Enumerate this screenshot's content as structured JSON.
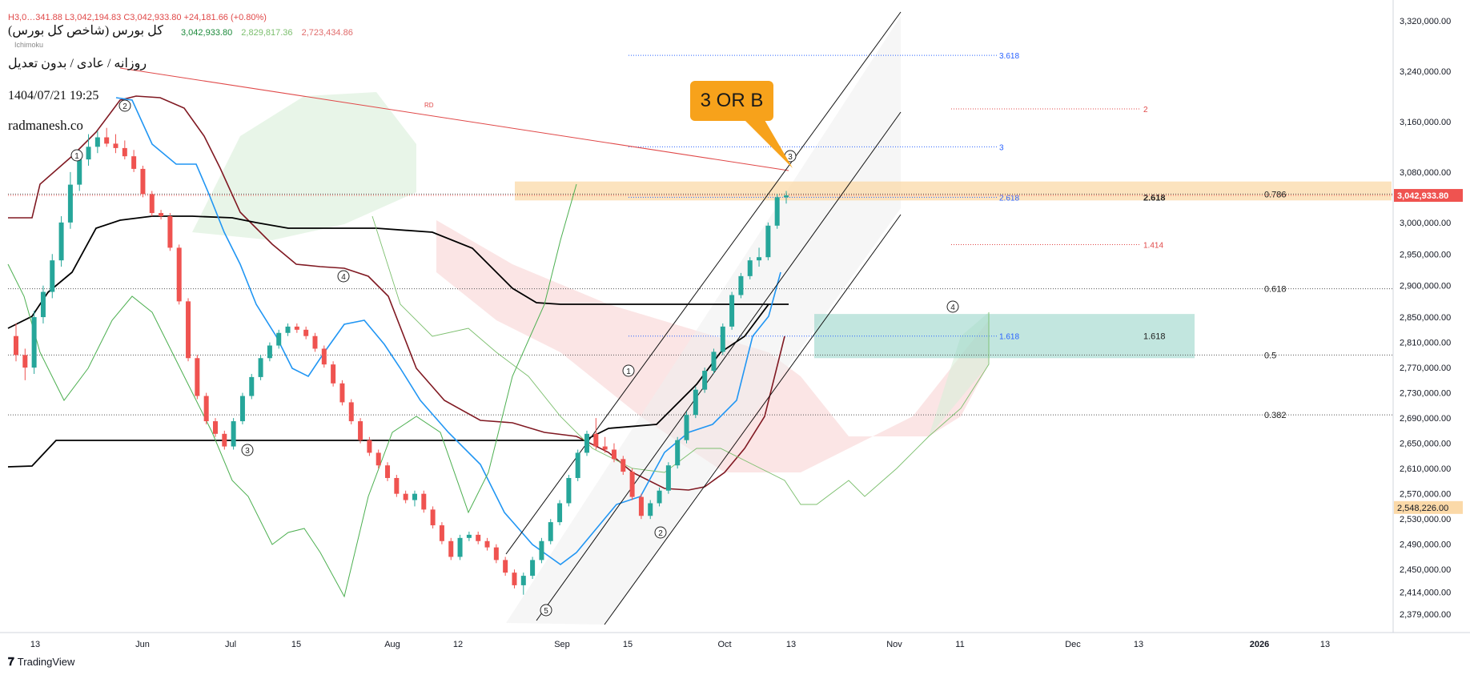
{
  "header": {
    "title": "کل بورس (شاخص کل بورس)",
    "subtitle": "روزانه / عادی / بدون تعدیل",
    "datetime": "1404/07/21 19:25",
    "site": "radmanesh.co",
    "ohlc": "H3,0…341.88  L3,042,194.83  C3,042,933.80  +24,181.66 (+0.80%)",
    "indicator_values": [
      "3,042,933.80",
      "2,829,817.36",
      "2,723,434.86"
    ],
    "indicator_name": "Ichimoku"
  },
  "callout": {
    "text": "3 OR B"
  },
  "footer": {
    "brand": "TradingView"
  },
  "colors": {
    "up": "#26a69a",
    "down": "#ef5350",
    "tenkan": "#2196f3",
    "kijun": "#801922",
    "chikou_base": "#000000",
    "senkou_a": "#4caf50",
    "kumo_red": "#f7cfcf",
    "kumo_green": "#d8eed8",
    "zone_orange": "#fbd9a8",
    "zone_teal": "#8fd1c4"
  },
  "chart_data": {
    "type": "candlestick",
    "title": "کل بورس (شاخص کل بورس)",
    "ylim": [
      2350000,
      3340000
    ],
    "y_ticks": [
      "3,320,000.00",
      "3,240,000.00",
      "3,160,000.00",
      "3,080,000.00",
      "3,000,000.00",
      "2,950,000.00",
      "2,900,000.00",
      "2,850,000.00",
      "2,810,000.00",
      "2,770,000.00",
      "2,730,000.00",
      "2,690,000.00",
      "2,650,000.00",
      "2,610,000.00",
      "2,570,000.00",
      "2,530,000.00",
      "2,490,000.00",
      "2,450,000.00",
      "2,414,000.00",
      "2,379,000.00"
    ],
    "x_ticks": [
      "13",
      "Jun",
      "Jul",
      "15",
      "Aug",
      "12",
      "Sep",
      "15",
      "Oct",
      "13",
      "Nov",
      "11",
      "Dec",
      "13",
      "2026",
      "13"
    ],
    "price_label": {
      "value": "3,042,933.80",
      "color": "#ef5350"
    },
    "secondary_label": {
      "value": "2,548,226.00",
      "color": "#fbd9a8"
    },
    "candles": [
      [
        2820000,
        2840000,
        2780000,
        2790000
      ],
      [
        2790000,
        2800000,
        2750000,
        2770000
      ],
      [
        2770000,
        2860000,
        2760000,
        2850000
      ],
      [
        2850000,
        2900000,
        2840000,
        2890000
      ],
      [
        2890000,
        2950000,
        2880000,
        2940000
      ],
      [
        2940000,
        3010000,
        2930000,
        3000000
      ],
      [
        3000000,
        3080000,
        2990000,
        3060000
      ],
      [
        3060000,
        3110000,
        3050000,
        3100000
      ],
      [
        3100000,
        3140000,
        3090000,
        3120000
      ],
      [
        3120000,
        3145000,
        3110000,
        3135000
      ],
      [
        3135000,
        3150000,
        3120000,
        3125000
      ],
      [
        3125000,
        3140000,
        3110000,
        3118000
      ],
      [
        3118000,
        3130000,
        3100000,
        3105000
      ],
      [
        3105000,
        3115000,
        3080000,
        3085000
      ],
      [
        3085000,
        3090000,
        3040000,
        3045000
      ],
      [
        3045000,
        3050000,
        3010000,
        3015000
      ],
      [
        3015000,
        3020000,
        3005000,
        3010000
      ],
      [
        3010000,
        3015000,
        2955000,
        2960000
      ],
      [
        2960000,
        2965000,
        2870000,
        2875000
      ],
      [
        2875000,
        2880000,
        2780000,
        2785000
      ],
      [
        2785000,
        2790000,
        2720000,
        2725000
      ],
      [
        2725000,
        2730000,
        2680000,
        2685000
      ],
      [
        2685000,
        2690000,
        2660000,
        2665000
      ],
      [
        2665000,
        2670000,
        2640000,
        2645000
      ],
      [
        2645000,
        2690000,
        2640000,
        2685000
      ],
      [
        2685000,
        2730000,
        2680000,
        2725000
      ],
      [
        2725000,
        2760000,
        2720000,
        2755000
      ],
      [
        2755000,
        2790000,
        2750000,
        2785000
      ],
      [
        2785000,
        2810000,
        2780000,
        2805000
      ],
      [
        2805000,
        2830000,
        2800000,
        2825000
      ],
      [
        2825000,
        2840000,
        2820000,
        2835000
      ],
      [
        2835000,
        2840000,
        2825000,
        2830000
      ],
      [
        2830000,
        2835000,
        2815000,
        2820000
      ],
      [
        2820000,
        2825000,
        2795000,
        2800000
      ],
      [
        2800000,
        2805000,
        2770000,
        2775000
      ],
      [
        2775000,
        2780000,
        2740000,
        2745000
      ],
      [
        2745000,
        2750000,
        2710000,
        2715000
      ],
      [
        2715000,
        2720000,
        2680000,
        2685000
      ],
      [
        2685000,
        2690000,
        2650000,
        2655000
      ],
      [
        2655000,
        2660000,
        2630000,
        2635000
      ],
      [
        2635000,
        2640000,
        2610000,
        2615000
      ],
      [
        2615000,
        2620000,
        2590000,
        2595000
      ],
      [
        2595000,
        2600000,
        2565000,
        2570000
      ],
      [
        2570000,
        2575000,
        2555000,
        2560000
      ],
      [
        2560000,
        2575000,
        2550000,
        2570000
      ],
      [
        2570000,
        2575000,
        2540000,
        2545000
      ],
      [
        2545000,
        2550000,
        2515000,
        2520000
      ],
      [
        2520000,
        2525000,
        2490000,
        2495000
      ],
      [
        2495000,
        2500000,
        2465000,
        2470000
      ],
      [
        2470000,
        2505000,
        2465000,
        2500000
      ],
      [
        2500000,
        2510000,
        2495000,
        2505000
      ],
      [
        2505000,
        2510000,
        2490000,
        2495000
      ],
      [
        2495000,
        2500000,
        2480000,
        2485000
      ],
      [
        2485000,
        2490000,
        2460000,
        2465000
      ],
      [
        2465000,
        2470000,
        2440000,
        2445000
      ],
      [
        2445000,
        2450000,
        2420000,
        2425000
      ],
      [
        2425000,
        2445000,
        2410000,
        2440000
      ],
      [
        2440000,
        2470000,
        2435000,
        2465000
      ],
      [
        2465000,
        2500000,
        2460000,
        2495000
      ],
      [
        2495000,
        2530000,
        2490000,
        2525000
      ],
      [
        2525000,
        2560000,
        2520000,
        2555000
      ],
      [
        2555000,
        2600000,
        2550000,
        2595000
      ],
      [
        2595000,
        2640000,
        2590000,
        2635000
      ],
      [
        2635000,
        2670000,
        2630000,
        2665000
      ],
      [
        2665000,
        2690000,
        2640000,
        2645000
      ],
      [
        2645000,
        2660000,
        2635000,
        2640000
      ],
      [
        2640000,
        2650000,
        2620000,
        2625000
      ],
      [
        2625000,
        2630000,
        2600000,
        2605000
      ],
      [
        2605000,
        2610000,
        2560000,
        2565000
      ],
      [
        2565000,
        2570000,
        2530000,
        2535000
      ],
      [
        2535000,
        2560000,
        2530000,
        2555000
      ],
      [
        2555000,
        2580000,
        2550000,
        2575000
      ],
      [
        2575000,
        2620000,
        2570000,
        2615000
      ],
      [
        2615000,
        2660000,
        2610000,
        2655000
      ],
      [
        2655000,
        2700000,
        2650000,
        2695000
      ],
      [
        2695000,
        2740000,
        2690000,
        2735000
      ],
      [
        2735000,
        2770000,
        2730000,
        2765000
      ],
      [
        2765000,
        2800000,
        2760000,
        2795000
      ],
      [
        2795000,
        2840000,
        2790000,
        2835000
      ],
      [
        2835000,
        2890000,
        2830000,
        2885000
      ],
      [
        2885000,
        2920000,
        2880000,
        2915000
      ],
      [
        2915000,
        2945000,
        2910000,
        2940000
      ],
      [
        2940000,
        2960000,
        2930000,
        2945000
      ],
      [
        2945000,
        3000000,
        2940000,
        2995000
      ],
      [
        2995000,
        3045000,
        2990000,
        3040000
      ],
      [
        3040000,
        3050000,
        3030000,
        3042933
      ]
    ],
    "fib_levels": [
      {
        "label": "0.786",
        "value": 3045000
      },
      {
        "label": "0.618",
        "value": 2895000
      },
      {
        "label": "0.5",
        "value": 2790000
      },
      {
        "label": "0.382",
        "value": 2695000
      }
    ],
    "ext_levels": [
      {
        "label": "3.618",
        "value": 3265000,
        "color": "#2962ff"
      },
      {
        "label": "2",
        "value": 3180000,
        "color": "#e04848"
      },
      {
        "label": "3",
        "value": 3120000,
        "color": "#2962ff"
      },
      {
        "label": "2.618",
        "value": 3040000,
        "color": "#2962ff"
      },
      {
        "label": "1.414",
        "value": 2965000,
        "color": "#e04848"
      },
      {
        "label": "1.618",
        "value": 2820000,
        "color": "#2962ff"
      }
    ],
    "zone_labels": [
      "2.618",
      "1.618"
    ],
    "line_label": "RD",
    "wave_labels": [
      "1",
      "2",
      "3",
      "4",
      "5",
      "3",
      "4",
      "1",
      "2",
      "3",
      "4"
    ]
  }
}
